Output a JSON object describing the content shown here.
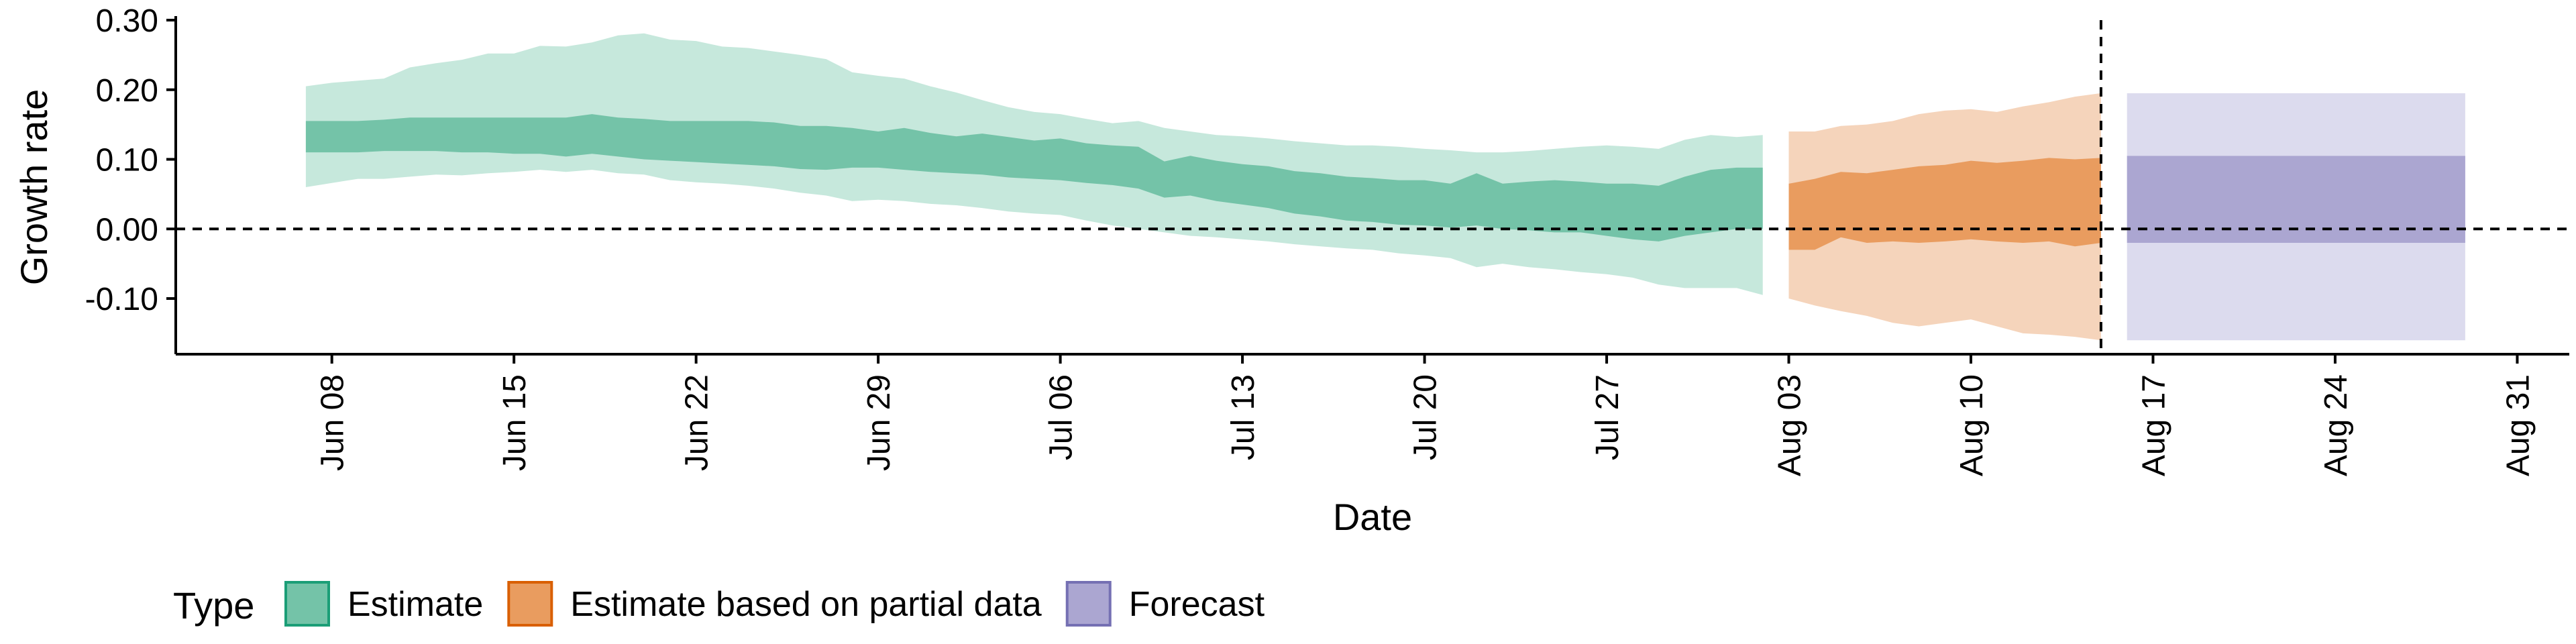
{
  "chart_data": {
    "type": "area",
    "xlabel": "Date",
    "ylabel": "Growth rate",
    "x_range": [
      "2020-06-02",
      "2020-09-02"
    ],
    "ylim": [
      -0.18,
      0.3
    ],
    "y_ticks": [
      0.3,
      0.2,
      0.1,
      0.0,
      -0.1
    ],
    "y_tick_labels": [
      "0.30",
      "0.20",
      "0.10",
      "0.00",
      "-0.10"
    ],
    "x_ticks": [
      "2020-06-08",
      "2020-06-15",
      "2020-06-22",
      "2020-06-29",
      "2020-07-06",
      "2020-07-13",
      "2020-07-20",
      "2020-07-27",
      "2020-08-03",
      "2020-08-10",
      "2020-08-17",
      "2020-08-24",
      "2020-08-31"
    ],
    "x_tick_labels": [
      "Jun 08",
      "Jun 15",
      "Jun 22",
      "Jun 29",
      "Jul 06",
      "Jul 13",
      "Jul 20",
      "Jul 27",
      "Aug 03",
      "Aug 10",
      "Aug 17",
      "Aug 24",
      "Aug 31"
    ],
    "reference_lines": {
      "horizontal_y": 0.0,
      "vertical_date": "2020-08-15"
    },
    "grid": false,
    "legend": {
      "title": "Type",
      "placement": "bottom-left",
      "entries": [
        {
          "label": "Estimate",
          "fill": "#74c3a8",
          "border": "#1b9e77"
        },
        {
          "label": "Estimate based on partial data",
          "fill": "#e99c5f",
          "border": "#d95f02"
        },
        {
          "label": "Forecast",
          "fill": "#aba6d1",
          "border": "#7570b3"
        }
      ]
    },
    "series": [
      {
        "name": "Estimate",
        "color_inner": "#74c3a8",
        "color_outer": "#c6e8dc",
        "points": [
          {
            "date": "2020-06-07",
            "lo90": 0.06,
            "lo50": 0.11,
            "hi50": 0.155,
            "hi90": 0.205
          },
          {
            "date": "2020-06-08",
            "lo90": 0.066,
            "lo50": 0.11,
            "hi50": 0.155,
            "hi90": 0.21
          },
          {
            "date": "2020-06-09",
            "lo90": 0.072,
            "lo50": 0.11,
            "hi50": 0.155,
            "hi90": 0.213
          },
          {
            "date": "2020-06-10",
            "lo90": 0.072,
            "lo50": 0.112,
            "hi50": 0.157,
            "hi90": 0.216
          },
          {
            "date": "2020-06-11",
            "lo90": 0.075,
            "lo50": 0.112,
            "hi50": 0.16,
            "hi90": 0.232
          },
          {
            "date": "2020-06-12",
            "lo90": 0.078,
            "lo50": 0.112,
            "hi50": 0.16,
            "hi90": 0.238
          },
          {
            "date": "2020-06-13",
            "lo90": 0.077,
            "lo50": 0.11,
            "hi50": 0.16,
            "hi90": 0.243
          },
          {
            "date": "2020-06-14",
            "lo90": 0.08,
            "lo50": 0.11,
            "hi50": 0.16,
            "hi90": 0.252
          },
          {
            "date": "2020-06-15",
            "lo90": 0.082,
            "lo50": 0.108,
            "hi50": 0.16,
            "hi90": 0.252
          },
          {
            "date": "2020-06-16",
            "lo90": 0.085,
            "lo50": 0.108,
            "hi50": 0.16,
            "hi90": 0.263
          },
          {
            "date": "2020-06-17",
            "lo90": 0.082,
            "lo50": 0.104,
            "hi50": 0.16,
            "hi90": 0.262
          },
          {
            "date": "2020-06-18",
            "lo90": 0.085,
            "lo50": 0.108,
            "hi50": 0.165,
            "hi90": 0.268
          },
          {
            "date": "2020-06-19",
            "lo90": 0.08,
            "lo50": 0.104,
            "hi50": 0.16,
            "hi90": 0.278
          },
          {
            "date": "2020-06-20",
            "lo90": 0.078,
            "lo50": 0.1,
            "hi50": 0.158,
            "hi90": 0.281
          },
          {
            "date": "2020-06-21",
            "lo90": 0.07,
            "lo50": 0.098,
            "hi50": 0.155,
            "hi90": 0.272
          },
          {
            "date": "2020-06-22",
            "lo90": 0.067,
            "lo50": 0.096,
            "hi50": 0.155,
            "hi90": 0.27
          },
          {
            "date": "2020-06-23",
            "lo90": 0.065,
            "lo50": 0.094,
            "hi50": 0.155,
            "hi90": 0.262
          },
          {
            "date": "2020-06-24",
            "lo90": 0.062,
            "lo50": 0.092,
            "hi50": 0.155,
            "hi90": 0.26
          },
          {
            "date": "2020-06-25",
            "lo90": 0.058,
            "lo50": 0.09,
            "hi50": 0.153,
            "hi90": 0.255
          },
          {
            "date": "2020-06-26",
            "lo90": 0.052,
            "lo50": 0.086,
            "hi50": 0.148,
            "hi90": 0.25
          },
          {
            "date": "2020-06-27",
            "lo90": 0.048,
            "lo50": 0.085,
            "hi50": 0.148,
            "hi90": 0.244
          },
          {
            "date": "2020-06-28",
            "lo90": 0.04,
            "lo50": 0.088,
            "hi50": 0.145,
            "hi90": 0.225
          },
          {
            "date": "2020-06-29",
            "lo90": 0.042,
            "lo50": 0.088,
            "hi50": 0.14,
            "hi90": 0.22
          },
          {
            "date": "2020-06-30",
            "lo90": 0.04,
            "lo50": 0.085,
            "hi50": 0.145,
            "hi90": 0.216
          },
          {
            "date": "2020-07-01",
            "lo90": 0.036,
            "lo50": 0.082,
            "hi50": 0.138,
            "hi90": 0.205
          },
          {
            "date": "2020-07-02",
            "lo90": 0.034,
            "lo50": 0.08,
            "hi50": 0.133,
            "hi90": 0.196
          },
          {
            "date": "2020-07-03",
            "lo90": 0.03,
            "lo50": 0.078,
            "hi50": 0.137,
            "hi90": 0.185
          },
          {
            "date": "2020-07-04",
            "lo90": 0.025,
            "lo50": 0.074,
            "hi50": 0.132,
            "hi90": 0.175
          },
          {
            "date": "2020-07-05",
            "lo90": 0.022,
            "lo50": 0.072,
            "hi50": 0.127,
            "hi90": 0.168
          },
          {
            "date": "2020-07-06",
            "lo90": 0.02,
            "lo50": 0.07,
            "hi50": 0.13,
            "hi90": 0.165
          },
          {
            "date": "2020-07-07",
            "lo90": 0.012,
            "lo50": 0.066,
            "hi50": 0.123,
            "hi90": 0.158
          },
          {
            "date": "2020-07-08",
            "lo90": 0.005,
            "lo50": 0.063,
            "hi50": 0.12,
            "hi90": 0.152
          },
          {
            "date": "2020-07-09",
            "lo90": 0.0,
            "lo50": 0.058,
            "hi50": 0.118,
            "hi90": 0.155
          },
          {
            "date": "2020-07-10",
            "lo90": -0.005,
            "lo50": 0.045,
            "hi50": 0.097,
            "hi90": 0.145
          },
          {
            "date": "2020-07-11",
            "lo90": -0.01,
            "lo50": 0.048,
            "hi50": 0.105,
            "hi90": 0.14
          },
          {
            "date": "2020-07-12",
            "lo90": -0.012,
            "lo50": 0.04,
            "hi50": 0.098,
            "hi90": 0.135
          },
          {
            "date": "2020-07-13",
            "lo90": -0.015,
            "lo50": 0.035,
            "hi50": 0.093,
            "hi90": 0.133
          },
          {
            "date": "2020-07-14",
            "lo90": -0.018,
            "lo50": 0.03,
            "hi50": 0.09,
            "hi90": 0.13
          },
          {
            "date": "2020-07-15",
            "lo90": -0.022,
            "lo50": 0.022,
            "hi50": 0.083,
            "hi90": 0.126
          },
          {
            "date": "2020-07-16",
            "lo90": -0.025,
            "lo50": 0.018,
            "hi50": 0.08,
            "hi90": 0.123
          },
          {
            "date": "2020-07-17",
            "lo90": -0.028,
            "lo50": 0.012,
            "hi50": 0.075,
            "hi90": 0.12
          },
          {
            "date": "2020-07-18",
            "lo90": -0.03,
            "lo50": 0.01,
            "hi50": 0.073,
            "hi90": 0.12
          },
          {
            "date": "2020-07-19",
            "lo90": -0.035,
            "lo50": 0.006,
            "hi50": 0.07,
            "hi90": 0.118
          },
          {
            "date": "2020-07-20",
            "lo90": -0.038,
            "lo50": 0.005,
            "hi50": 0.07,
            "hi90": 0.115
          },
          {
            "date": "2020-07-21",
            "lo90": -0.042,
            "lo50": 0.002,
            "hi50": 0.065,
            "hi90": 0.113
          },
          {
            "date": "2020-07-22",
            "lo90": -0.055,
            "lo50": 0.005,
            "hi50": 0.08,
            "hi90": 0.11
          },
          {
            "date": "2020-07-23",
            "lo90": -0.05,
            "lo50": 0.0,
            "hi50": 0.065,
            "hi90": 0.11
          },
          {
            "date": "2020-07-24",
            "lo90": -0.055,
            "lo50": -0.002,
            "hi50": 0.068,
            "hi90": 0.112
          },
          {
            "date": "2020-07-25",
            "lo90": -0.058,
            "lo50": -0.005,
            "hi50": 0.07,
            "hi90": 0.115
          },
          {
            "date": "2020-07-26",
            "lo90": -0.062,
            "lo50": -0.005,
            "hi50": 0.068,
            "hi90": 0.118
          },
          {
            "date": "2020-07-27",
            "lo90": -0.065,
            "lo50": -0.01,
            "hi50": 0.065,
            "hi90": 0.12
          },
          {
            "date": "2020-07-28",
            "lo90": -0.07,
            "lo50": -0.015,
            "hi50": 0.065,
            "hi90": 0.118
          },
          {
            "date": "2020-07-29",
            "lo90": -0.08,
            "lo50": -0.018,
            "hi50": 0.062,
            "hi90": 0.115
          },
          {
            "date": "2020-07-30",
            "lo90": -0.085,
            "lo50": -0.01,
            "hi50": 0.075,
            "hi90": 0.128
          },
          {
            "date": "2020-07-31",
            "lo90": -0.085,
            "lo50": -0.005,
            "hi50": 0.085,
            "hi90": 0.135
          },
          {
            "date": "2020-08-01",
            "lo90": -0.085,
            "lo50": 0.0,
            "hi50": 0.088,
            "hi90": 0.132
          },
          {
            "date": "2020-08-02",
            "lo90": -0.095,
            "lo50": 0.0,
            "hi50": 0.088,
            "hi90": 0.135
          }
        ]
      },
      {
        "name": "Estimate based on partial data",
        "color_inner": "#e99c5f",
        "color_outer": "#f5d4bb",
        "points": [
          {
            "date": "2020-08-03",
            "lo90": -0.1,
            "lo50": -0.03,
            "hi50": 0.065,
            "hi90": 0.14
          },
          {
            "date": "2020-08-04",
            "lo90": -0.11,
            "lo50": -0.03,
            "hi50": 0.072,
            "hi90": 0.14
          },
          {
            "date": "2020-08-05",
            "lo90": -0.118,
            "lo50": -0.012,
            "hi50": 0.082,
            "hi90": 0.148
          },
          {
            "date": "2020-08-06",
            "lo90": -0.125,
            "lo50": -0.02,
            "hi50": 0.08,
            "hi90": 0.15
          },
          {
            "date": "2020-08-07",
            "lo90": -0.135,
            "lo50": -0.018,
            "hi50": 0.085,
            "hi90": 0.155
          },
          {
            "date": "2020-08-08",
            "lo90": -0.14,
            "lo50": -0.02,
            "hi50": 0.09,
            "hi90": 0.165
          },
          {
            "date": "2020-08-09",
            "lo90": -0.135,
            "lo50": -0.018,
            "hi50": 0.092,
            "hi90": 0.17
          },
          {
            "date": "2020-08-10",
            "lo90": -0.13,
            "lo50": -0.015,
            "hi50": 0.098,
            "hi90": 0.172
          },
          {
            "date": "2020-08-11",
            "lo90": -0.14,
            "lo50": -0.018,
            "hi50": 0.095,
            "hi90": 0.168
          },
          {
            "date": "2020-08-12",
            "lo90": -0.15,
            "lo50": -0.02,
            "hi50": 0.098,
            "hi90": 0.176
          },
          {
            "date": "2020-08-13",
            "lo90": -0.152,
            "lo50": -0.018,
            "hi50": 0.102,
            "hi90": 0.182
          },
          {
            "date": "2020-08-14",
            "lo90": -0.155,
            "lo50": -0.025,
            "hi50": 0.1,
            "hi90": 0.19
          },
          {
            "date": "2020-08-15",
            "lo90": -0.16,
            "lo50": -0.02,
            "hi50": 0.102,
            "hi90": 0.195
          }
        ]
      },
      {
        "name": "Forecast",
        "color_inner": "#aba6d1",
        "color_outer": "#dcdbee",
        "points": [
          {
            "date": "2020-08-16",
            "lo90": -0.16,
            "lo50": -0.02,
            "hi50": 0.105,
            "hi90": 0.195
          },
          {
            "date": "2020-08-29",
            "lo90": -0.16,
            "lo50": -0.02,
            "hi50": 0.105,
            "hi90": 0.195
          }
        ]
      }
    ]
  }
}
